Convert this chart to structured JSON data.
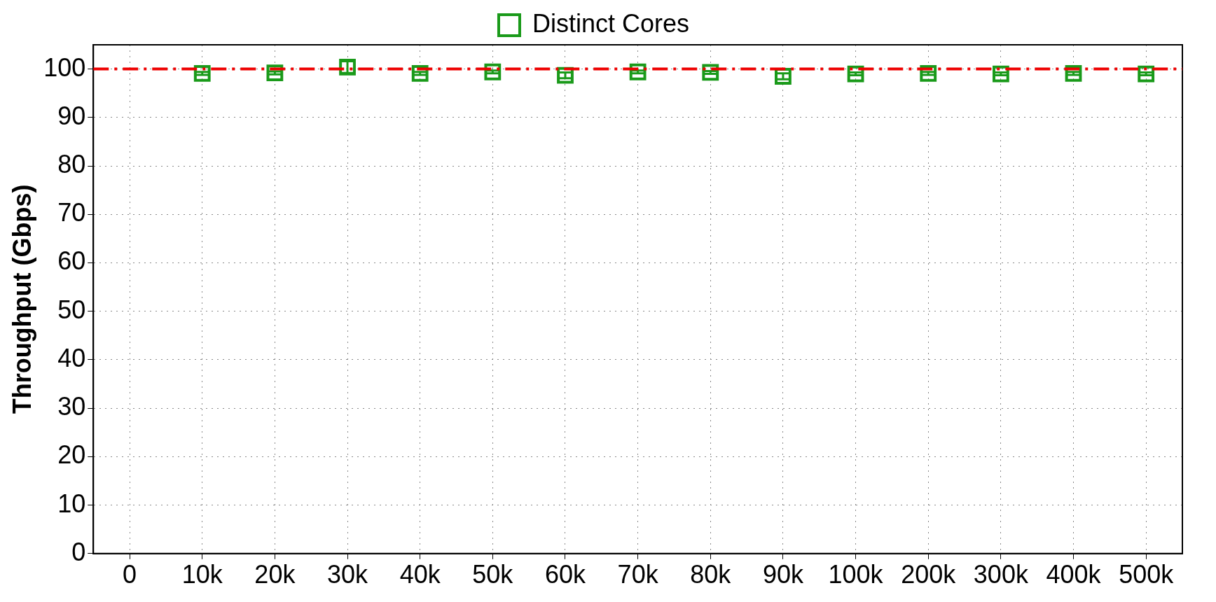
{
  "chart_data": {
    "type": "scatter",
    "ylabel": "Throughput (Gbps)",
    "categories": [
      "0",
      "10k",
      "20k",
      "30k",
      "40k",
      "50k",
      "60k",
      "70k",
      "80k",
      "90k",
      "100k",
      "200k",
      "300k",
      "400k",
      "500k"
    ],
    "series": [
      {
        "name": "Distinct Cores",
        "color": "#1a9a1a",
        "values": [
          null,
          99.1,
          99.2,
          100.4,
          99.1,
          99.4,
          98.7,
          99.4,
          99.3,
          98.5,
          99.0,
          99.1,
          99.0,
          99.1,
          99.0
        ],
        "errors": [
          null,
          0.3,
          0.3,
          1.2,
          0.3,
          0.3,
          0.6,
          0.3,
          0.3,
          0.6,
          0.3,
          0.3,
          0.3,
          0.3,
          0.3
        ]
      }
    ],
    "ylim": [
      0,
      105
    ],
    "yticks": [
      0,
      10,
      20,
      30,
      40,
      50,
      60,
      70,
      80,
      90,
      100
    ],
    "ref_lines": [
      {
        "axis": "y",
        "value": 100,
        "color": "#ee0000",
        "line_style": "dashed"
      }
    ],
    "grid": true,
    "legend": "top",
    "marker": "square"
  }
}
